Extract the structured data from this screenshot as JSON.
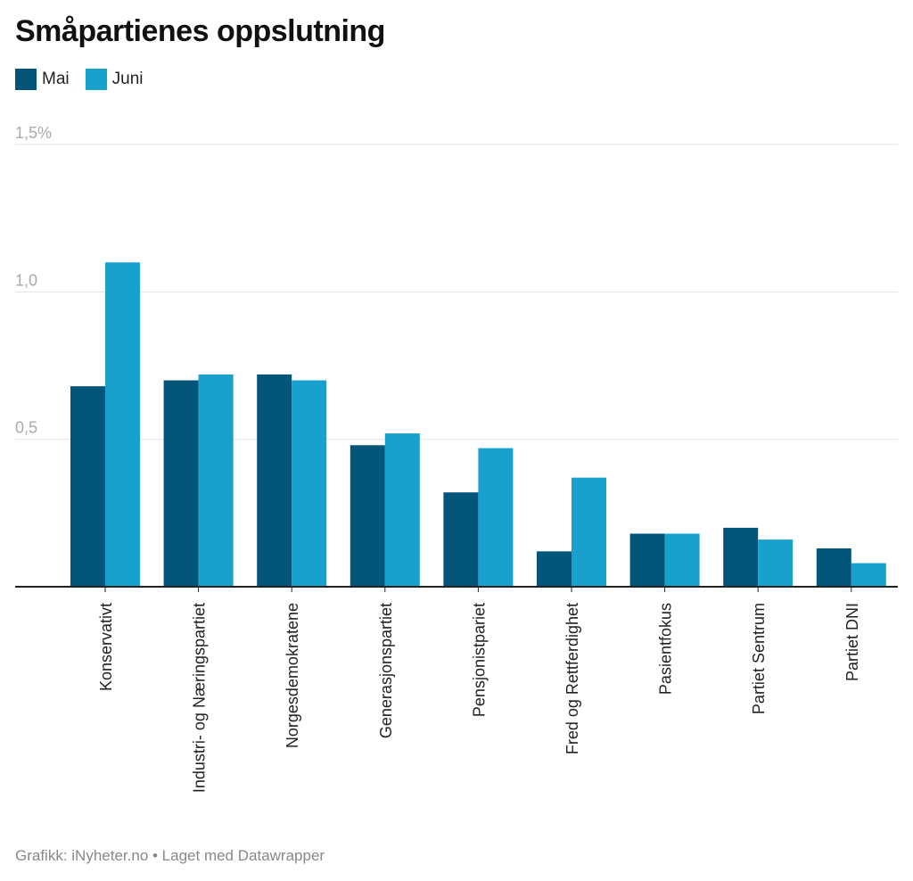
{
  "title": "Småpartienes oppslutning",
  "footer": "Grafikk: iNyheter.no • Laget med Datawrapper",
  "colors": {
    "mai": "#03557a",
    "juni": "#18a1cd",
    "grid": "#e2e2e2",
    "axis": "#222222",
    "tick": "#aaaaaa"
  },
  "chart_data": {
    "type": "bar",
    "categories": [
      "Konservativt",
      "Industri- og Næringspartiet",
      "Norgesdemokratene",
      "Generasjonspartiet",
      "Pensjonistpariet",
      "Fred og Rettferdighet",
      "Pasientfokus",
      "Partiet Sentrum",
      "Partiet DNI"
    ],
    "series": [
      {
        "name": "Mai",
        "values": [
          0.68,
          0.7,
          0.72,
          0.48,
          0.32,
          0.12,
          0.18,
          0.2,
          0.13
        ]
      },
      {
        "name": "Juni",
        "values": [
          1.1,
          0.72,
          0.7,
          0.52,
          0.47,
          0.37,
          0.18,
          0.16,
          0.08
        ]
      }
    ],
    "yticks": [
      0.5,
      1.0,
      1.5
    ],
    "ytick_labels": [
      "0,5",
      "1,0",
      "1,5%"
    ],
    "ylim": [
      0,
      1.5
    ],
    "grid": true,
    "legend": "top-left"
  }
}
